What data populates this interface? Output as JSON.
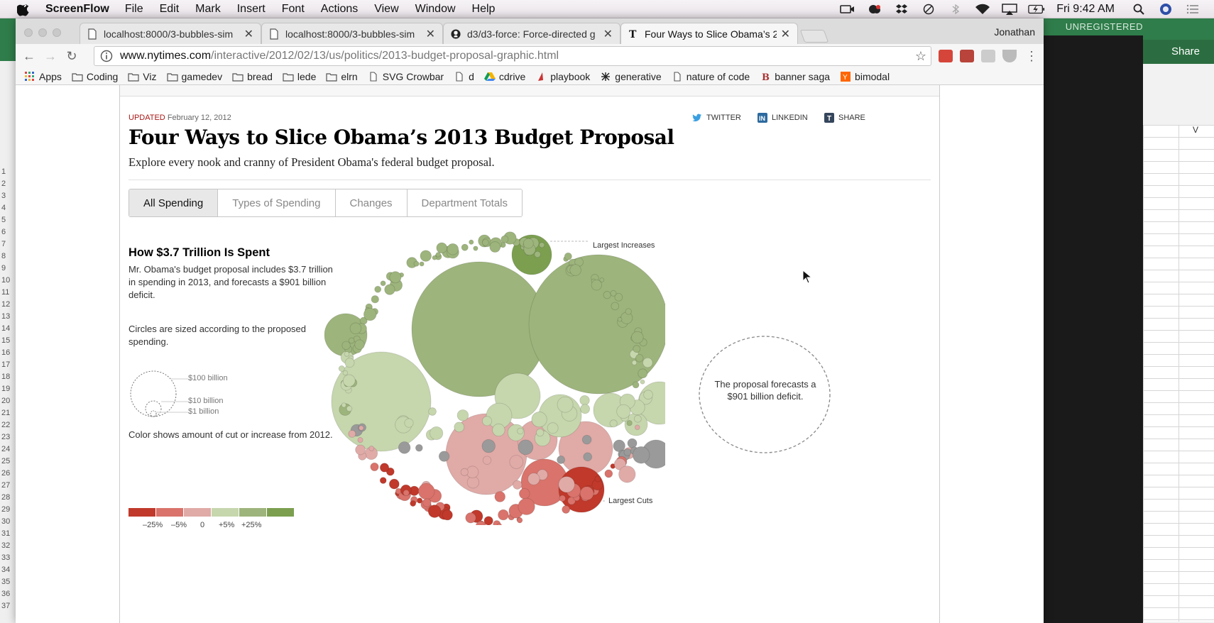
{
  "menubar": {
    "app": "ScreenFlow",
    "items": [
      "File",
      "Edit",
      "Mark",
      "Insert",
      "Font",
      "Actions",
      "View",
      "Window",
      "Help"
    ],
    "clock": "Fri 9:42 AM"
  },
  "background_app": {
    "unregistered": "UNREGISTERED",
    "share": "Share",
    "column_label": "V",
    "row_numbers": [
      "1",
      "2",
      "3",
      "4",
      "5",
      "6",
      "7",
      "8",
      "9",
      "10",
      "11",
      "12",
      "13",
      "14",
      "15",
      "16",
      "17",
      "18",
      "19",
      "20",
      "21",
      "22",
      "23",
      "24",
      "25",
      "26",
      "27",
      "28",
      "29",
      "30",
      "31",
      "32",
      "33",
      "34",
      "35",
      "36",
      "37"
    ]
  },
  "browser": {
    "tabs": [
      {
        "title": "localhost:8000/3-bubbles-sim",
        "icon": "page-icon"
      },
      {
        "title": "localhost:8000/3-bubbles-sim",
        "icon": "page-icon"
      },
      {
        "title": "d3/d3-force: Force-directed g",
        "icon": "github-icon"
      },
      {
        "title": "Four Ways to Slice Obama’s 20",
        "icon": "nytimes-icon"
      }
    ],
    "profile": "Jonathan",
    "url_domain": "www.nytimes.com",
    "url_path": "/interactive/2012/02/13/us/politics/2013-budget-proposal-graphic.html",
    "bookmarks": [
      {
        "label": "Apps",
        "icon": "apps-icon"
      },
      {
        "label": "Coding",
        "icon": "folder-icon"
      },
      {
        "label": "Viz",
        "icon": "folder-icon"
      },
      {
        "label": "gamedev",
        "icon": "folder-icon"
      },
      {
        "label": "bread",
        "icon": "folder-icon"
      },
      {
        "label": "lede",
        "icon": "folder-icon"
      },
      {
        "label": "elrn",
        "icon": "folder-icon"
      },
      {
        "label": "SVG Crowbar",
        "icon": "page-icon"
      },
      {
        "label": "d",
        "icon": "page-icon"
      },
      {
        "label": "cdrive",
        "icon": "drive-icon"
      },
      {
        "label": "playbook",
        "icon": "playbook-icon"
      },
      {
        "label": "generative",
        "icon": "generative-icon"
      },
      {
        "label": "nature of code",
        "icon": "page-icon"
      },
      {
        "label": "banner saga",
        "icon": "b-icon"
      },
      {
        "label": "bimodal",
        "icon": "y-icon"
      }
    ]
  },
  "article": {
    "updated_label": "Updated",
    "updated_date": "February 12, 2012",
    "social": [
      "TWITTER",
      "LINKEDIN",
      "SHARE"
    ],
    "headline": "Four Ways to Slice Obama’s 2013 Budget Proposal",
    "dek": "Explore every nook and cranny of President Obama's federal budget proposal.",
    "tabs": [
      "All Spending",
      "Types of Spending",
      "Changes",
      "Department Totals"
    ],
    "active_tab": "All Spending",
    "side_title": "How $3.7 Trillion Is Spent",
    "side_intro": "Mr. Obama's budget proposal includes $3.7 trillion in spending in 2013, and forecasts a $901 billion deficit.",
    "size_note": "Circles are sized according to the proposed spending.",
    "size_labels": [
      "$100 billion",
      "$10 billion",
      "$1 billion"
    ],
    "color_note": "Color shows amount of cut or increase from 2012.",
    "color_scale": [
      "#c0392b",
      "#d9736b",
      "#e0aaa7",
      "#c6d6ad",
      "#9db47c",
      "#7b9f4f"
    ],
    "color_ticks": [
      "–25%",
      "–5%",
      "0",
      "+5%",
      "+25%"
    ],
    "annot_increases": "Largest Increases",
    "annot_cuts": "Largest Cuts",
    "deficit_text": "The proposal forecasts a $901 billion deficit."
  }
}
